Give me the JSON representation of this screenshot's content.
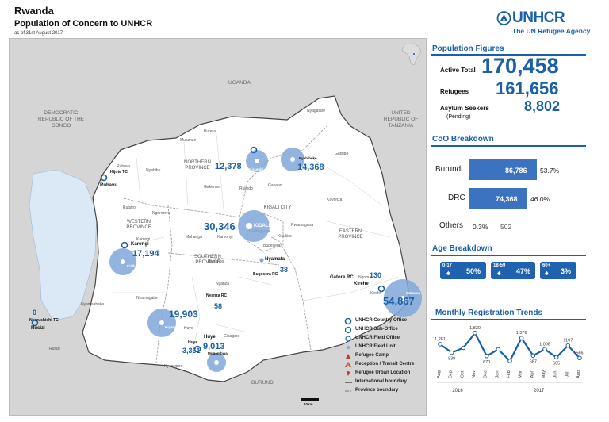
{
  "header": {
    "country": "Rwanda",
    "subtitle": "Population of Concern to UNHCR",
    "date": "as of 31st August 2017"
  },
  "logo": {
    "name": "UNHCR",
    "tagline": "The UN Refugee Agency"
  },
  "population": {
    "title": "Population Figures",
    "active_total_label": "Active Total",
    "active_total": "170,458",
    "refugees_label": "Refugees",
    "refugees": "161,656",
    "asylum_label": "Asylum Seekers",
    "asylum_sub": "(Pending)",
    "asylum": "8,802"
  },
  "coo": {
    "title": "CoO Breakdown",
    "rows": [
      {
        "label": "Burundi",
        "value": "86,786",
        "pct": "53.7%",
        "fraction": 0.537
      },
      {
        "label": "DRC",
        "value": "74,368",
        "pct": "46.0%",
        "fraction": 0.46
      },
      {
        "label": "Others",
        "value": "502",
        "pct": "0.3%",
        "fraction": 0.003
      }
    ]
  },
  "age": {
    "title": "Age Breakdown",
    "groups": [
      {
        "label": "0-17",
        "pct": "50%"
      },
      {
        "label": "18-59",
        "pct": "47%"
      },
      {
        "label": "60+",
        "pct": "3%"
      }
    ]
  },
  "chart_data": {
    "type": "line",
    "title": "Monthly Registration Trends",
    "categories": [
      "Aug",
      "Sep",
      "Oct",
      "Nov",
      "Dec",
      "Jan",
      "Feb",
      "Mar",
      "Apr",
      "May",
      "Jun",
      "Jul",
      "Aug"
    ],
    "values": [
      1261,
      839,
      1080,
      1830,
      670,
      1005,
      420,
      1576,
      687,
      1008,
      605,
      1197,
      566
    ],
    "value_labels": [
      "1,261",
      "839",
      "",
      "1,830",
      "670",
      "",
      "",
      "1,576",
      "687",
      "1,008",
      "605",
      "1197",
      "566"
    ],
    "year_labels": [
      "2016",
      "2017"
    ],
    "color": "#1a5fa8"
  },
  "map": {
    "countries": [
      "UGANDA",
      "DEMOCRATIC REPUBLIC OF THE CONGO",
      "UNITED REPUBLIC OF TANZANIA",
      "BURUNDI"
    ],
    "provinces": [
      "NORTHERN PROVINCE",
      "WESTERN PROVINCE",
      "SOUTHERN PROVINCE",
      "EASTERN PROVINCE",
      "KIGALI CITY"
    ],
    "sites": [
      {
        "name": "Gicumbi",
        "value": "12,378"
      },
      {
        "name": "Nyabiheke",
        "value": "14,368"
      },
      {
        "name": "KIGALI",
        "value": "30,346"
      },
      {
        "name": "Kiziba",
        "value": "17,194"
      },
      {
        "name": "Kigeme",
        "value": "19,903"
      },
      {
        "name": "Mugombwa",
        "value": "9,013"
      },
      {
        "name": "Mahama",
        "value": "54,867"
      },
      {
        "name": "Huye",
        "value": "3,361"
      },
      {
        "name": "Gatore RC",
        "value": "130"
      },
      {
        "name": "Bugesera RC",
        "value": "38"
      },
      {
        "name": "Nyanza RC",
        "value": "58"
      },
      {
        "name": "Nyarushishi TC",
        "value": "0"
      }
    ],
    "office_labels": [
      "Kijote TC",
      "Rubavu",
      "Karongi",
      "Nyamata",
      "Kirehe",
      "Rusizi",
      "Huye"
    ],
    "districts": [
      "Musanze",
      "Burera",
      "Rubavu",
      "Nyabihu",
      "Gakenke",
      "Rulindo",
      "Ngororero",
      "Rutsiro",
      "Muhanga",
      "Kamonyi",
      "Karongi",
      "Ruhango",
      "Nyanza",
      "Nyamagabe",
      "Huye",
      "Gisagara",
      "Nyaruguru",
      "Nyamasheke",
      "Rusizi",
      "Ngoma",
      "Kirehe",
      "Bugesera",
      "Rwamagana",
      "Kayonza",
      "Gatsibo",
      "Nyagatare",
      "Gasabo",
      "Kicukiro",
      "Nyarugenge"
    ],
    "scale": "10km"
  },
  "legend": [
    {
      "icon": "country-office-icon",
      "label": "UNHCR Country Office"
    },
    {
      "icon": "sub-office-icon",
      "label": "UNHCR Sub-Office"
    },
    {
      "icon": "field-office-icon",
      "label": "UNHCR Field Office"
    },
    {
      "icon": "field-unit-icon",
      "label": "UNHCR Field Unit"
    },
    {
      "icon": "refugee-camp-icon",
      "label": "Refugee Camp"
    },
    {
      "icon": "reception-centre-icon",
      "label": "Reception / Transit Centre"
    },
    {
      "icon": "urban-location-icon",
      "label": "Refugee Urban Location"
    },
    {
      "icon": "international-boundary-icon",
      "label": "International boundary"
    },
    {
      "icon": "province-boundary-icon",
      "label": "Province boundary"
    }
  ]
}
